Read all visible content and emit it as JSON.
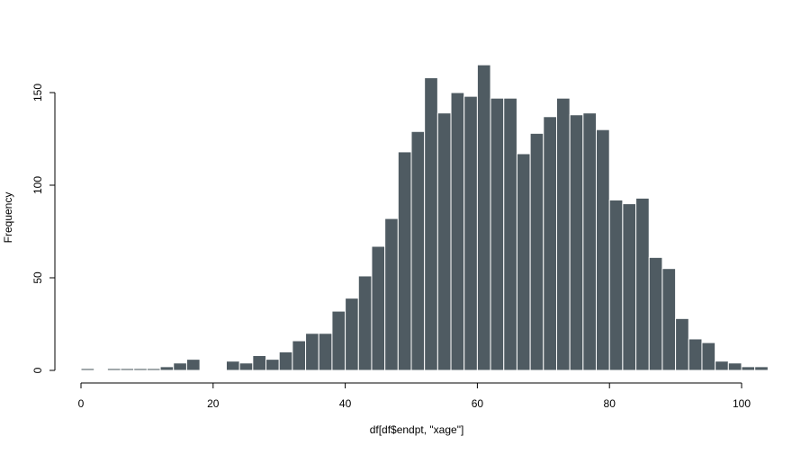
{
  "chart_data": {
    "type": "bar",
    "title": "",
    "xlabel": "df[df$endpt, \"xage\"]",
    "ylabel": "Frequency",
    "bin_width": 2,
    "bin_start": 0,
    "values": [
      1,
      0,
      1,
      1,
      1,
      1,
      2,
      4,
      6,
      0,
      0,
      5,
      4,
      8,
      6,
      10,
      16,
      20,
      20,
      32,
      39,
      51,
      67,
      82,
      118,
      129,
      158,
      139,
      150,
      148,
      165,
      147,
      147,
      117,
      128,
      137,
      147,
      138,
      139,
      130,
      92,
      90,
      93,
      61,
      55,
      28,
      17,
      15,
      5,
      4,
      2,
      2
    ],
    "xlim": [
      0,
      102
    ],
    "ylim": [
      0,
      165
    ],
    "x_ticks": [
      0,
      20,
      40,
      60,
      80,
      100
    ],
    "y_ticks": [
      0,
      50,
      100,
      150
    ],
    "grid": false,
    "bar_color": "#4f5b62",
    "bar_border_color": "#ffffff"
  }
}
